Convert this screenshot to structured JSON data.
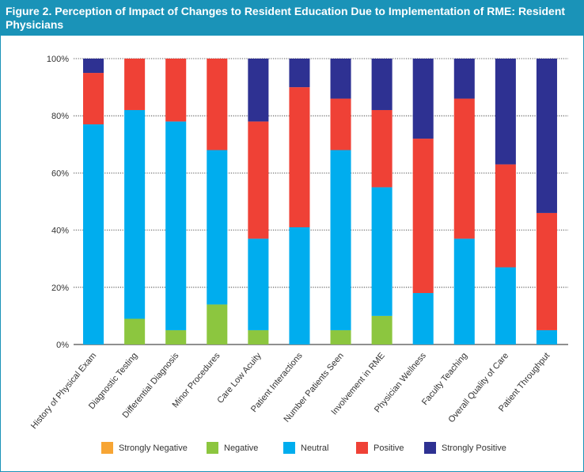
{
  "figure": {
    "title": "Figure 2. Perception of Impact of Changes to Resident Education Due to Implementation of RME: Resident Physicians"
  },
  "chart_data": {
    "type": "bar",
    "stacked": true,
    "orientation": "vertical",
    "title": "Figure 2. Perception of Impact of Changes to Resident Education Due to Implementation of RME: Resident Physicians",
    "xlabel": "",
    "ylabel": "",
    "ylim": [
      0,
      100
    ],
    "y_ticks": [
      "0%",
      "20%",
      "40%",
      "60%",
      "80%",
      "100%"
    ],
    "grid": true,
    "legend_position": "bottom",
    "categories": [
      "History of Physical Exam",
      "Diagnostic Testing",
      "Differential Diagnosis",
      "Minor Procedures",
      "Care Low Acuity",
      "Patient Interactions",
      "Number Patients Seen",
      "Involvement in RME",
      "Physician Wellness",
      "Faculty Teaching",
      "Overall Quality of Care",
      "Patient Throughput"
    ],
    "series": [
      {
        "name": "Strongly Negative",
        "color": "#f7a534",
        "values": [
          0,
          0,
          0,
          0,
          0,
          0,
          0,
          0,
          0,
          0,
          0,
          0
        ]
      },
      {
        "name": "Negative",
        "color": "#8cc63f",
        "values": [
          0,
          9,
          5,
          14,
          5,
          0,
          5,
          10,
          0,
          0,
          0,
          0
        ]
      },
      {
        "name": "Neutral",
        "color": "#00adee",
        "values": [
          77,
          73,
          73,
          54,
          32,
          41,
          63,
          45,
          18,
          37,
          27,
          5
        ]
      },
      {
        "name": "Positive",
        "color": "#ef4136",
        "values": [
          18,
          18,
          22,
          32,
          41,
          49,
          18,
          27,
          54,
          49,
          36,
          41
        ]
      },
      {
        "name": "Strongly Positive",
        "color": "#2e3192",
        "values": [
          5,
          0,
          0,
          0,
          22,
          10,
          14,
          18,
          28,
          14,
          37,
          54
        ]
      }
    ]
  }
}
